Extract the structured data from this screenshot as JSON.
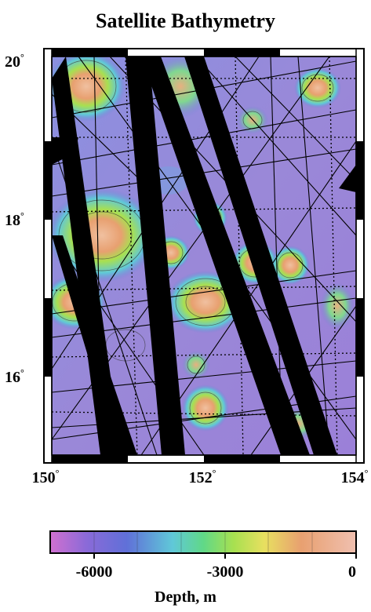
{
  "title": "Satellite Bathymetry",
  "map": {
    "lon_ticks": [
      "150",
      "152",
      "154"
    ],
    "lat_ticks": [
      "20",
      "18",
      "16"
    ],
    "degree_symbol": "°"
  },
  "colorbar": {
    "tick_labels": [
      "-6000",
      "-3000",
      "0"
    ],
    "label": "Depth, m",
    "range": [
      -7000,
      0
    ],
    "colors": [
      "#d070d0",
      "#8a6ad8",
      "#6070d8",
      "#60c8d8",
      "#60d888",
      "#a8e050",
      "#e8e060",
      "#e8a070",
      "#f0c0b0"
    ]
  }
}
